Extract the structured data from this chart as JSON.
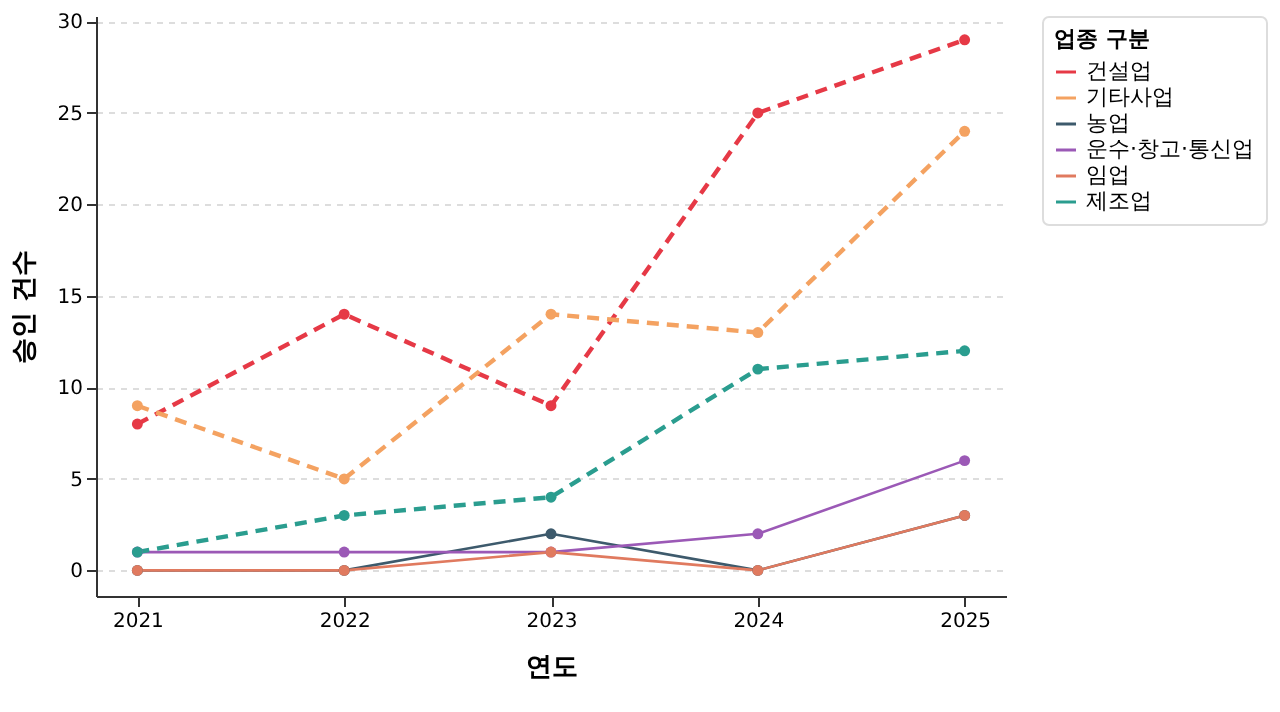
{
  "chart_data": {
    "type": "line",
    "xlabel": "연도",
    "ylabel": "승인 건수",
    "legend_title": "업종 구분",
    "categories": [
      "2021",
      "2022",
      "2023",
      "2024",
      "2025"
    ],
    "series": [
      {
        "name": "건설업",
        "color": "#e63946",
        "line_style": "dashed",
        "values": [
          8,
          14,
          9,
          25,
          29
        ]
      },
      {
        "name": "기타사업",
        "color": "#f4a261",
        "line_style": "dashed",
        "values": [
          9,
          5,
          14,
          13,
          24
        ]
      },
      {
        "name": "농업",
        "color": "#3d5a6c",
        "line_style": "solid",
        "values": [
          0,
          0,
          2,
          0,
          3
        ]
      },
      {
        "name": "운수·창고·통신업",
        "color": "#9b59b6",
        "line_style": "solid",
        "values": [
          1,
          1,
          1,
          2,
          6
        ]
      },
      {
        "name": "임업",
        "color": "#e07a5f",
        "line_style": "solid",
        "values": [
          0,
          0,
          1,
          0,
          3
        ]
      },
      {
        "name": "제조업",
        "color": "#2a9d8f",
        "line_style": "dashed",
        "values": [
          1,
          3,
          4,
          11,
          12
        ]
      }
    ],
    "ylim": [
      -1.4,
      30.3
    ],
    "yticks": [
      0,
      5,
      10,
      15,
      20,
      25,
      30
    ],
    "grid": "y",
    "legend": "top right",
    "marker": "circle"
  }
}
